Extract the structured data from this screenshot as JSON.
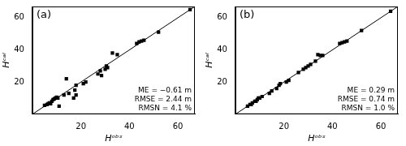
{
  "chart_data": [
    {
      "type": "scatter",
      "title": "(a)",
      "x_label": "Hᵒᵇˢ",
      "y_label": "Hᶜᵃˡ",
      "xlim": [
        0,
        67
      ],
      "ylim": [
        0,
        67
      ],
      "xticks": [
        20,
        40,
        60
      ],
      "yticks": [
        20,
        40,
        60
      ],
      "grid": false,
      "annotations": [
        "ME = −0.61 m",
        "RMSE = 2.44 m",
        "RMSN = 4.1 %"
      ],
      "series": [
        {
          "type": "line",
          "color": "#000000",
          "line_style": "solid",
          "x": [
            0,
            67
          ],
          "values": [
            0,
            67
          ]
        },
        {
          "type": "scatter",
          "color": "#000000",
          "marker": "square",
          "x": [
            5,
            6,
            6.5,
            7,
            7.5,
            8,
            8.5,
            9,
            9.5,
            10,
            10.5,
            11,
            13,
            14,
            15,
            17,
            17.5,
            18,
            18,
            21,
            22,
            27,
            28,
            28.5,
            30,
            30.5,
            31,
            33,
            35,
            43,
            44,
            45,
            46,
            52,
            65
          ],
          "values": [
            5.5,
            6,
            6.5,
            7,
            6.5,
            8,
            9,
            9.5,
            10,
            10.5,
            10,
            5,
            12,
            22,
            13,
            10,
            15,
            18,
            12,
            19,
            20,
            25,
            27,
            24,
            28,
            30,
            29,
            38,
            37,
            44,
            45,
            45.5,
            46,
            51,
            65
          ]
        }
      ]
    },
    {
      "type": "scatter",
      "title": "(b)",
      "x_label": "Hᵒᵇˢ",
      "y_label": "Hᶜᵃˡ",
      "xlim": [
        0,
        67
      ],
      "ylim": [
        0,
        67
      ],
      "xticks": [
        20,
        40,
        60
      ],
      "yticks": [
        20,
        40,
        60
      ],
      "grid": false,
      "annotations": [
        "ME = 0.29 m",
        "RMSE = 0.74 m",
        "RMSN = 1.0 %"
      ],
      "series": [
        {
          "type": "line",
          "color": "#000000",
          "line_style": "solid",
          "x": [
            0,
            67
          ],
          "values": [
            0,
            67
          ]
        },
        {
          "type": "scatter",
          "color": "#000000",
          "marker": "square",
          "x": [
            5,
            6,
            6.5,
            7,
            8,
            8.5,
            9,
            9.5,
            10,
            11,
            14,
            15,
            17,
            18,
            18.5,
            21,
            22,
            26,
            28,
            29,
            30,
            31,
            33,
            34,
            35,
            36,
            43,
            44,
            45,
            46,
            52,
            64
          ],
          "values": [
            5,
            6,
            6,
            7,
            8,
            8,
            9,
            10,
            10,
            11,
            13,
            14.5,
            16,
            18,
            19,
            20,
            21,
            26,
            28,
            29,
            30,
            31,
            33,
            37,
            36.5,
            36.5,
            44,
            44.5,
            45,
            45.5,
            52,
            64
          ]
        }
      ]
    }
  ]
}
